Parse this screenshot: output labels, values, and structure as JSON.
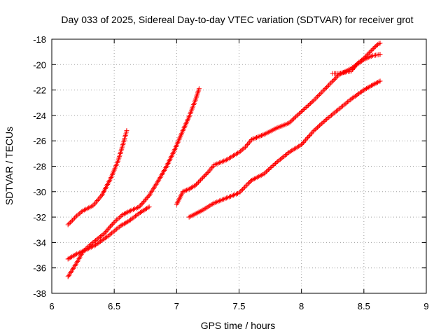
{
  "chart_data": {
    "type": "scatter",
    "title": "Day 033 of 2025, Sidereal Day-to-day VTEC variation (SDTVAR) for receiver grot",
    "xlabel": "GPS time / hours",
    "ylabel": "SDTVAR / TECUs",
    "xlim": [
      6,
      9
    ],
    "ylim": [
      -38,
      -18
    ],
    "xticks": [
      "6",
      "6.5",
      "7",
      "7.5",
      "8",
      "8.5",
      "9"
    ],
    "yticks": [
      "-18",
      "-20",
      "-22",
      "-24",
      "-26",
      "-28",
      "-30",
      "-32",
      "-34",
      "-36",
      "-38"
    ],
    "grid": true,
    "marker": "plus",
    "color": "#ff0000",
    "series": [
      {
        "x": [
          6.13,
          6.2,
          6.25,
          6.33,
          6.4,
          6.47,
          6.53,
          6.57,
          6.6
        ],
        "y": [
          -32.6,
          -31.9,
          -31.5,
          -31.1,
          -30.3,
          -29.0,
          -27.6,
          -26.3,
          -25.2
        ]
      },
      {
        "x": [
          6.13,
          6.2,
          6.27,
          6.35,
          6.45,
          6.55,
          6.62,
          6.7,
          6.78
        ],
        "y": [
          -35.3,
          -34.9,
          -34.6,
          -34.2,
          -33.5,
          -32.7,
          -32.3,
          -31.7,
          -31.2
        ]
      },
      {
        "x": [
          6.13,
          6.2,
          6.25,
          6.33,
          6.42,
          6.5,
          6.57,
          6.63,
          6.7,
          6.78,
          6.85,
          6.92,
          6.98,
          7.05,
          7.1,
          7.15,
          7.18
        ],
        "y": [
          -36.7,
          -35.6,
          -34.7,
          -34.0,
          -33.3,
          -32.4,
          -31.8,
          -31.5,
          -31.2,
          -30.3,
          -29.2,
          -28.0,
          -26.8,
          -25.2,
          -24.1,
          -22.8,
          -21.9
        ]
      },
      {
        "x": [
          7.0,
          7.05,
          7.1,
          7.15,
          7.2,
          7.25,
          7.3,
          7.4,
          7.5,
          7.55,
          7.6,
          7.65,
          7.7,
          7.8,
          7.9,
          8.0,
          8.1,
          8.2,
          8.3,
          8.4,
          8.5,
          8.57,
          8.63
        ],
        "y": [
          -31.0,
          -30.0,
          -29.8,
          -29.5,
          -29.0,
          -28.5,
          -27.9,
          -27.5,
          -26.9,
          -26.5,
          -25.9,
          -25.7,
          -25.5,
          -25.0,
          -24.6,
          -23.7,
          -22.8,
          -21.8,
          -20.8,
          -20.3,
          -19.6,
          -19.3,
          -19.2
        ]
      },
      {
        "x": [
          7.1,
          7.2,
          7.3,
          7.4,
          7.5,
          7.6,
          7.7,
          7.8,
          7.9,
          8.0,
          8.1,
          8.2,
          8.3,
          8.4,
          8.5,
          8.57,
          8.63
        ],
        "y": [
          -32.0,
          -31.5,
          -30.9,
          -30.5,
          -30.1,
          -29.1,
          -28.6,
          -27.7,
          -26.9,
          -26.3,
          -25.2,
          -24.3,
          -23.5,
          -22.7,
          -22.0,
          -21.6,
          -21.3
        ]
      },
      {
        "x": [
          8.25,
          8.3,
          8.35,
          8.4,
          8.45,
          8.5,
          8.55,
          8.6,
          8.63
        ],
        "y": [
          -20.7,
          -20.7,
          -20.6,
          -20.5,
          -19.9,
          -19.5,
          -19.0,
          -18.5,
          -18.3
        ]
      }
    ]
  }
}
